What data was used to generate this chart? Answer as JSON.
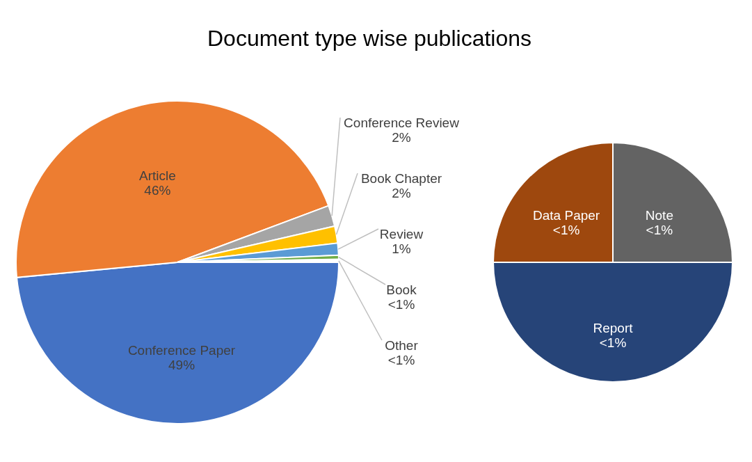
{
  "chart_data": [
    {
      "type": "pie",
      "title": "Document type wise publications",
      "categories": [
        "Conference Paper",
        "Article",
        "Conference Review",
        "Book Chapter",
        "Review",
        "Book",
        "Other"
      ],
      "values": [
        48.5,
        45.8,
        2.1,
        1.7,
        1.2,
        0.4,
        0.3
      ],
      "colors": [
        "#4472c4",
        "#ed7d31",
        "#a5a5a5",
        "#ffc000",
        "#5b9bd5",
        "#70ad47",
        "#ffffff"
      ],
      "value_labels": [
        "49%",
        "46%",
        "2%",
        "2%",
        "1%",
        "<1%",
        "<1%"
      ]
    },
    {
      "type": "pie",
      "categories": [
        "Report",
        "Data Paper",
        "Note"
      ],
      "values": [
        50,
        25,
        25
      ],
      "colors": [
        "#264478",
        "#9e480e",
        "#636363"
      ],
      "value_labels": [
        "<1%",
        "<1%",
        "<1%"
      ]
    }
  ]
}
